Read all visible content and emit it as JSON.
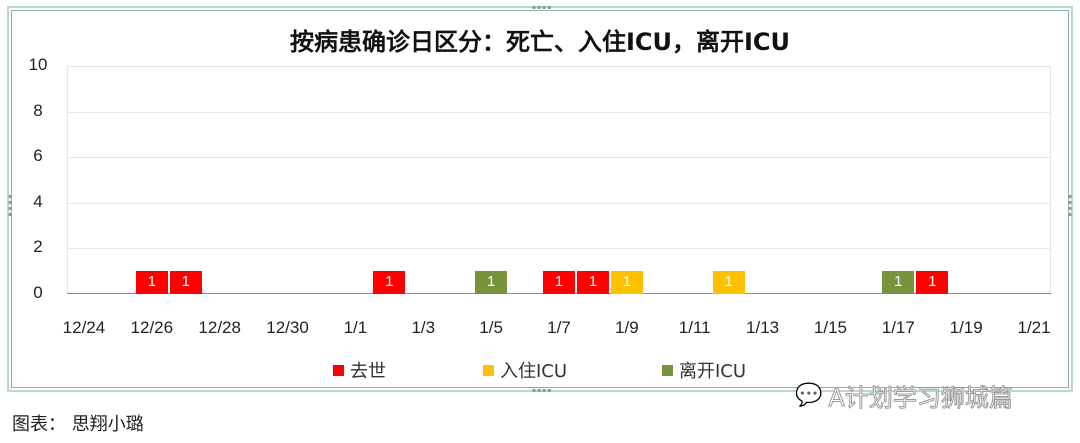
{
  "chart_data": {
    "type": "bar",
    "stacked": false,
    "title": "按病患确诊日区分：死亡、入住ICU，离开ICU",
    "xlabel": "",
    "ylabel": "",
    "ylim": [
      0,
      10
    ],
    "yticks": [
      "0",
      "2",
      "4",
      "6",
      "8",
      "10"
    ],
    "xtick_labels": [
      "12/24",
      "12/26",
      "12/28",
      "12/30",
      "1/1",
      "1/3",
      "1/5",
      "1/7",
      "1/9",
      "1/11",
      "1/13",
      "1/15",
      "1/17",
      "1/19",
      "1/21"
    ],
    "categories": [
      "12/24",
      "12/25",
      "12/26",
      "12/27",
      "12/28",
      "12/29",
      "12/30",
      "12/31",
      "1/1",
      "1/2",
      "1/3",
      "1/4",
      "1/5",
      "1/6",
      "1/7",
      "1/8",
      "1/9",
      "1/10",
      "1/11",
      "1/12",
      "1/13",
      "1/14",
      "1/15",
      "1/16",
      "1/17",
      "1/18",
      "1/19",
      "1/20",
      "1/21"
    ],
    "series": [
      {
        "name": "去世",
        "color": "#ff0000",
        "points": [
          {
            "x": "12/26",
            "y": 1
          },
          {
            "x": "12/27",
            "y": 1
          },
          {
            "x": "1/2",
            "y": 1
          },
          {
            "x": "1/7",
            "y": 1
          },
          {
            "x": "1/8",
            "y": 1
          },
          {
            "x": "1/18",
            "y": 1
          }
        ]
      },
      {
        "name": "入住ICU",
        "color": "#ffc000",
        "points": [
          {
            "x": "1/9",
            "y": 1
          },
          {
            "x": "1/12",
            "y": 1
          }
        ]
      },
      {
        "name": "离开ICU",
        "color": "#77933c",
        "points": [
          {
            "x": "1/5",
            "y": 1
          },
          {
            "x": "1/17",
            "y": 1
          }
        ]
      }
    ],
    "data_labels": true,
    "grid": true,
    "legend_position": "bottom"
  },
  "legend": [
    {
      "label": "去世",
      "color": "#ff0000"
    },
    {
      "label": "入住ICU",
      "color": "#ffc000"
    },
    {
      "label": "离开ICU",
      "color": "#77933c"
    }
  ],
  "watermark": "A计划学习狮城篇",
  "caption": "图表：  思翔小璐"
}
